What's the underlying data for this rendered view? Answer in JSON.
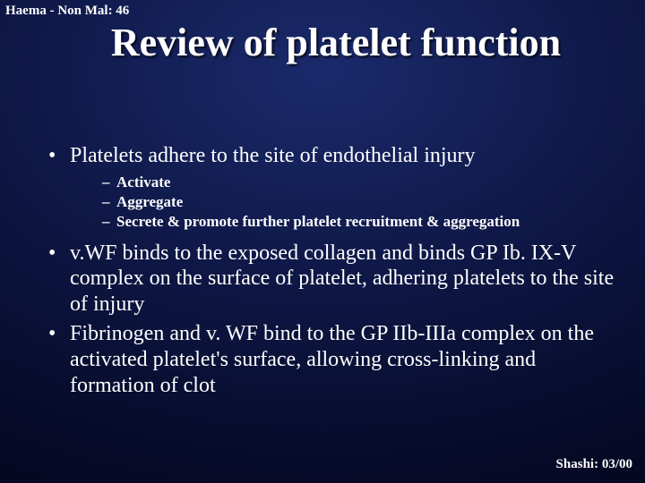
{
  "header": {
    "label": "Haema - Non Mal: 46"
  },
  "title": "Review of platelet function",
  "bullets": [
    {
      "text": "Platelets adhere to the site of endothelial injury",
      "subs": [
        "Activate",
        "Aggregate",
        "Secrete & promote further platelet recruitment & aggregation"
      ]
    },
    {
      "text": "v.WF binds to the exposed collagen and binds GP Ib. IX-V complex on the surface of platelet, adhering platelets to the site of injury",
      "subs": []
    },
    {
      "text": "Fibrinogen and v. WF bind to the GP IIb-IIIa complex on the activated platelet's surface, allowing cross-linking and formation of clot",
      "subs": []
    }
  ],
  "footer": {
    "label": "Shashi: 03/00"
  },
  "style": {
    "background_gradient": [
      "#1a2a6b",
      "#0e1745",
      "#060a28",
      "#030518"
    ],
    "text_color": "#ffffff",
    "title_fontsize": 44,
    "body_fontsize": 24,
    "sub_fontsize": 17,
    "header_fontsize": 15,
    "footer_fontsize": 15,
    "font_family": "Times New Roman"
  }
}
